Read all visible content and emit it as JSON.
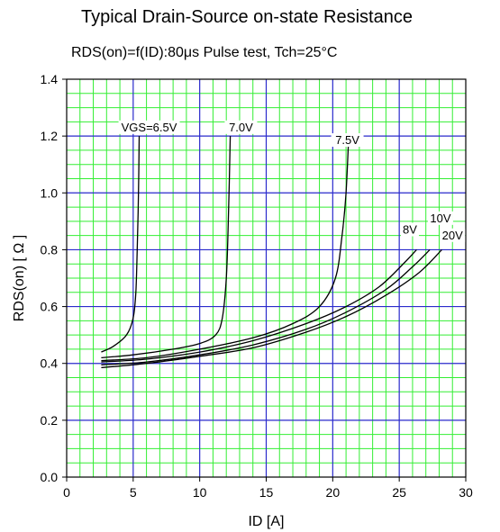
{
  "chart_data": {
    "type": "line",
    "title": "Typical Drain-Source on-state Resistance",
    "subtitle": "RDS(on)=f(ID):80μs Pulse test, Tch=25°C",
    "xlabel": "ID [A]",
    "ylabel": "RDS(on) [ Ω ]",
    "xlim": [
      0,
      30
    ],
    "ylim": [
      0.0,
      1.4
    ],
    "x_ticks": [
      "0",
      "5",
      "10",
      "15",
      "20",
      "25",
      "30"
    ],
    "y_ticks": [
      "0.0",
      "0.2",
      "0.4",
      "0.6",
      "0.8",
      "1.0",
      "1.2",
      "1.4"
    ],
    "grid": true,
    "colors": {
      "major_grid": "#2a2acc",
      "minor_grid": "#33ee33",
      "curve": "#000000"
    },
    "series": [
      {
        "name": "VGS=6.5V",
        "x": [
          2.6,
          3.5,
          4.5,
          5.0,
          5.2,
          5.3,
          5.4,
          5.45
        ],
        "y": [
          0.44,
          0.46,
          0.5,
          0.56,
          0.65,
          0.8,
          1.0,
          1.2
        ]
      },
      {
        "name": "7.0V",
        "x": [
          2.6,
          5,
          8,
          10,
          11.2,
          11.7,
          12.0,
          12.15,
          12.3
        ],
        "y": [
          0.42,
          0.43,
          0.45,
          0.47,
          0.5,
          0.56,
          0.7,
          0.9,
          1.2
        ]
      },
      {
        "name": "7.5V",
        "x": [
          2.6,
          6,
          10,
          14,
          17,
          19,
          20.2,
          20.7,
          21.0,
          21.2
        ],
        "y": [
          0.41,
          0.42,
          0.45,
          0.49,
          0.54,
          0.6,
          0.7,
          0.85,
          1.0,
          1.2
        ]
      },
      {
        "name": "8V",
        "x": [
          2.6,
          6,
          10,
          14,
          18,
          21,
          23.5,
          25.5,
          26.3
        ],
        "y": [
          0.405,
          0.415,
          0.44,
          0.48,
          0.54,
          0.6,
          0.67,
          0.76,
          0.8
        ]
      },
      {
        "name": "10V",
        "x": [
          2.6,
          6,
          10,
          14,
          18,
          21,
          24,
          26,
          27.3
        ],
        "y": [
          0.395,
          0.405,
          0.43,
          0.465,
          0.52,
          0.58,
          0.66,
          0.74,
          0.8
        ]
      },
      {
        "name": "20V",
        "x": [
          2.6,
          6,
          10,
          14,
          18,
          21,
          24,
          26.5,
          28.2
        ],
        "y": [
          0.385,
          0.4,
          0.425,
          0.455,
          0.51,
          0.565,
          0.64,
          0.72,
          0.8
        ]
      }
    ],
    "annotations": [
      {
        "text": "VGS=6.5V",
        "x": 6.2,
        "y": 1.22
      },
      {
        "text": "7.0V",
        "x": 13.1,
        "y": 1.22
      },
      {
        "text": "7.5V",
        "x": 21.1,
        "y": 1.175
      },
      {
        "text": "8V",
        "x": 25.8,
        "y": 0.86
      },
      {
        "text": "10V",
        "x": 28.1,
        "y": 0.9
      },
      {
        "text": "20V",
        "x": 29.0,
        "y": 0.84
      }
    ]
  }
}
